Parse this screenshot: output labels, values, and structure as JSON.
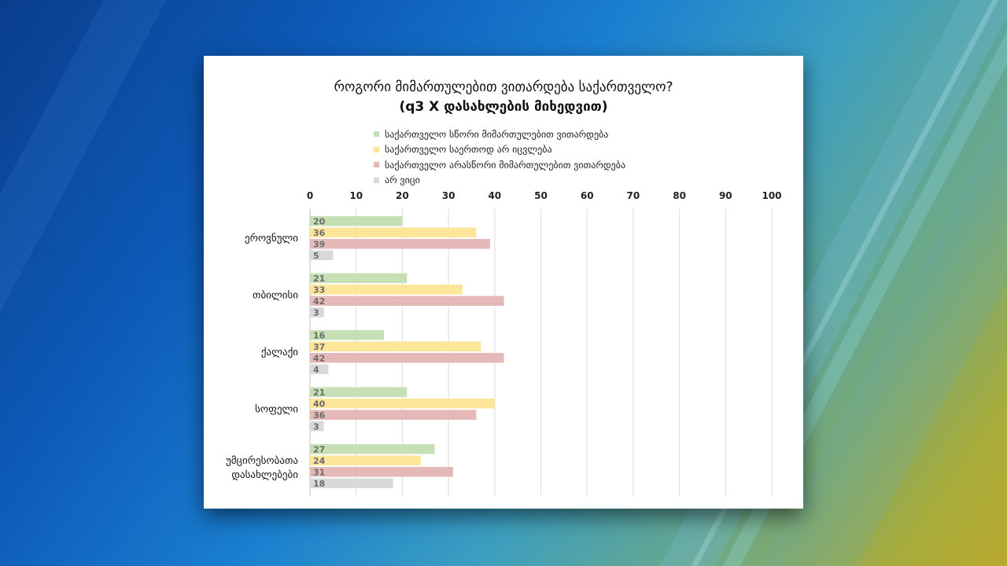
{
  "chart_data": {
    "type": "bar",
    "orientation": "horizontal",
    "title": "როგორი მიმართულებით ვითარდება საქართველო?",
    "subtitle": "(q3 X დასახლების მიხედვით)",
    "categories": [
      "ეროვნული",
      "თბილისი",
      "ქალაქი",
      "სოფელი",
      "უმცირესობათა დასახლებები"
    ],
    "series": [
      {
        "name": "საქართველო  სწორი მიმართულებით ვითარდება",
        "color": "#c6dfb4",
        "values": [
          20,
          21,
          16,
          21,
          27
        ]
      },
      {
        "name": "საქართველო საერთოდ არ იცვლება",
        "color": "#fde59a",
        "values": [
          36,
          33,
          37,
          40,
          24
        ]
      },
      {
        "name": "საქართველო  არასწორი მიმართულებით ვითარდება",
        "color": "#e6b9b9",
        "values": [
          39,
          42,
          42,
          36,
          31
        ]
      },
      {
        "name": "არ ვიცი",
        "color": "#d9d9d9",
        "values": [
          5,
          3,
          4,
          3,
          18
        ]
      }
    ],
    "xlim": [
      0,
      100
    ],
    "xticks": [
      0,
      10,
      20,
      30,
      40,
      50,
      60,
      70,
      80,
      90,
      100
    ],
    "x_axis_position": "top",
    "grid": true,
    "legend_position": "top"
  }
}
